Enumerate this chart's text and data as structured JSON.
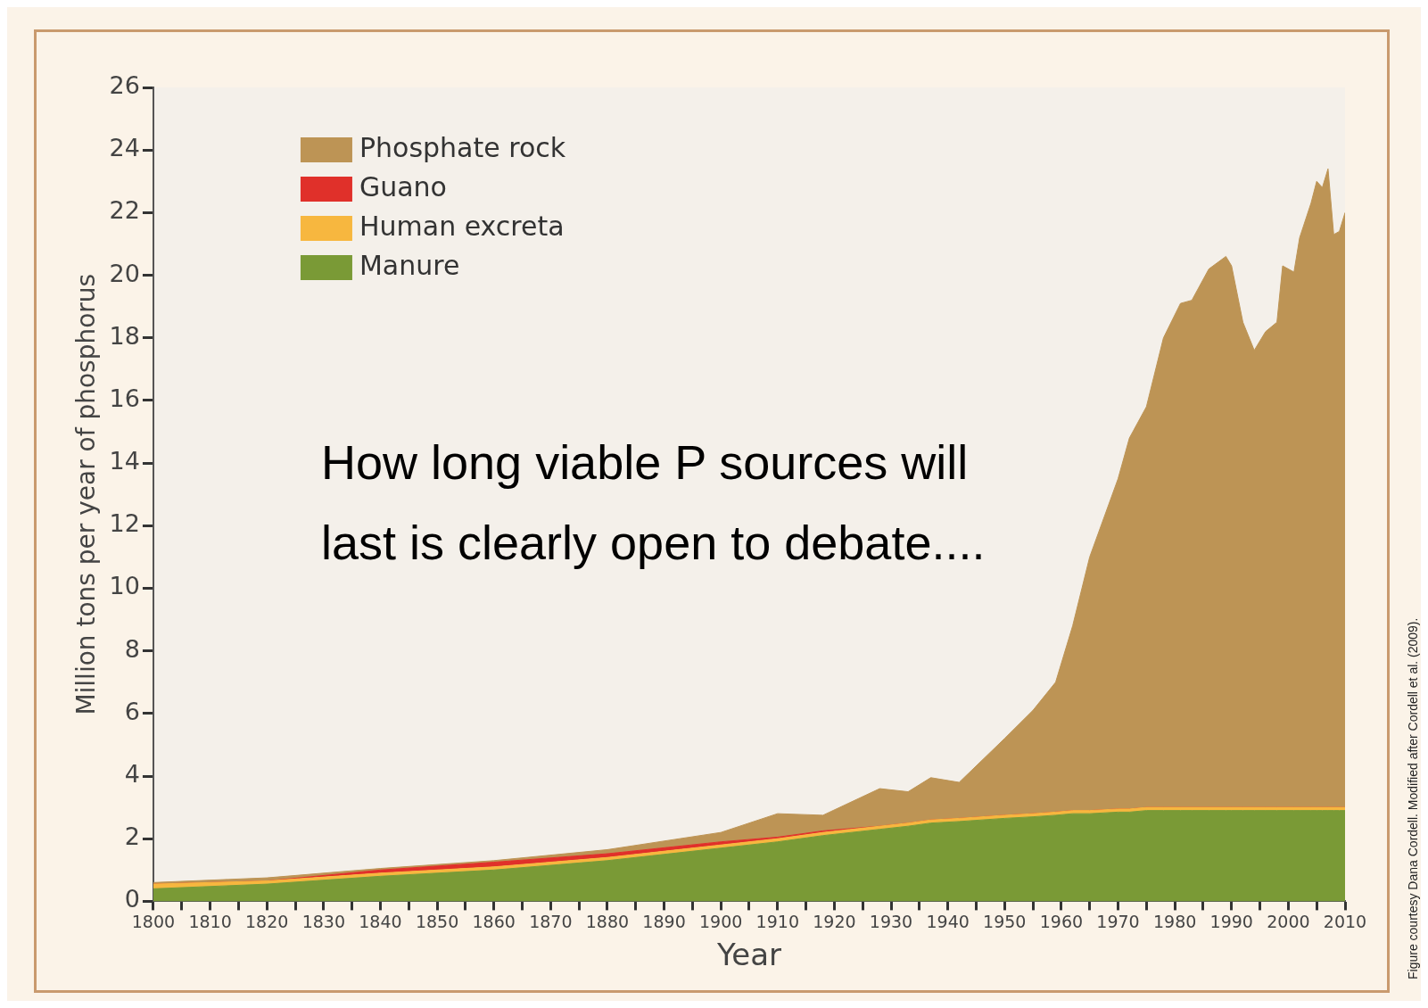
{
  "chart_data": {
    "type": "area",
    "xlabel": "Year",
    "ylabel": "Million tons per year of phosphorus",
    "stacked": true,
    "legend": "top left",
    "marker": "none",
    "x": [
      1800,
      1820,
      1840,
      1860,
      1880,
      1900,
      1910,
      1918,
      1928,
      1933,
      1937,
      1942,
      1950,
      1955,
      1959,
      1962,
      1965,
      1970,
      1972,
      1975,
      1978,
      1981,
      1983,
      1986,
      1989,
      1990,
      1992,
      1994,
      1996,
      1998,
      1999,
      2001,
      2002,
      2004,
      2005,
      2006,
      2007,
      2008,
      2009,
      2010
    ],
    "series": [
      {
        "name": "Manure",
        "color": "#7a9a36",
        "values": [
          0.4,
          0.55,
          0.8,
          1.0,
          1.3,
          1.7,
          1.9,
          2.1,
          2.3,
          2.4,
          2.5,
          2.55,
          2.65,
          2.7,
          2.75,
          2.8,
          2.8,
          2.85,
          2.85,
          2.9,
          2.9,
          2.9,
          2.9,
          2.9,
          2.9,
          2.9,
          2.9,
          2.9,
          2.9,
          2.9,
          2.9,
          2.9,
          2.9,
          2.9,
          2.9,
          2.9,
          2.9,
          2.9,
          2.9,
          2.9
        ]
      },
      {
        "name": "Human excreta",
        "color": "#f7b73f",
        "values": [
          0.15,
          0.1,
          0.1,
          0.1,
          0.1,
          0.1,
          0.1,
          0.1,
          0.1,
          0.1,
          0.1,
          0.1,
          0.1,
          0.1,
          0.1,
          0.1,
          0.1,
          0.1,
          0.1,
          0.1,
          0.1,
          0.1,
          0.1,
          0.1,
          0.1,
          0.1,
          0.1,
          0.1,
          0.1,
          0.1,
          0.1,
          0.1,
          0.1,
          0.1,
          0.1,
          0.1,
          0.1,
          0.1,
          0.1,
          0.1
        ]
      },
      {
        "name": "Guano",
        "color": "#e0302a",
        "values": [
          0,
          0,
          0.1,
          0.15,
          0.12,
          0.1,
          0.05,
          0.05,
          0,
          0,
          0,
          0,
          0,
          0,
          0,
          0,
          0,
          0,
          0,
          0,
          0,
          0,
          0,
          0,
          0,
          0,
          0,
          0,
          0,
          0,
          0,
          0,
          0,
          0,
          0,
          0,
          0,
          0,
          0,
          0
        ]
      },
      {
        "name": "Phosphate rock",
        "color": "#bd9455",
        "values": [
          0.05,
          0.1,
          0.05,
          0.05,
          0.13,
          0.3,
          0.75,
          0.5,
          1.2,
          1.0,
          1.35,
          1.15,
          2.45,
          3.3,
          4.15,
          5.9,
          8.1,
          10.55,
          11.85,
          12.8,
          15,
          16.1,
          16.2,
          17.2,
          17.6,
          17.3,
          15.5,
          14.6,
          15.2,
          15.5,
          17.3,
          17.1,
          18.2,
          19.3,
          20,
          19.8,
          20.4,
          18.3,
          18.4,
          19
        ]
      }
    ],
    "xlim": [
      1800,
      2010
    ],
    "xticks": [
      1800,
      {
        "value": 1805,
        "label": null
      },
      1810,
      {
        "value": 1815,
        "label": null
      },
      1820,
      {
        "value": 1825,
        "label": null
      },
      1830,
      {
        "value": 1835,
        "label": null
      },
      1840,
      {
        "value": 1845,
        "label": null
      },
      1850,
      {
        "value": 1855,
        "label": null
      },
      1860,
      {
        "value": 1865,
        "label": null
      },
      1870,
      {
        "value": 1875,
        "label": null
      },
      1880,
      {
        "value": 1885,
        "label": null
      },
      1890,
      {
        "value": 1895,
        "label": null
      },
      1900,
      {
        "value": 1905,
        "label": null
      },
      1910,
      {
        "value": 1915,
        "label": null
      },
      1920,
      {
        "value": 1925,
        "label": null
      },
      1930,
      {
        "value": 1935,
        "label": null
      },
      1940,
      {
        "value": 1945,
        "label": null
      },
      1950,
      {
        "value": 1955,
        "label": null
      },
      1960,
      {
        "value": 1965,
        "label": null
      },
      1970,
      {
        "value": 1975,
        "label": null
      },
      1980,
      {
        "value": 1985,
        "label": null
      },
      1990,
      {
        "value": 1995,
        "label": null
      },
      2000,
      {
        "value": 2005,
        "label": null
      },
      2010
    ],
    "ylim": [
      0,
      26
    ],
    "yticks": [
      0,
      2,
      4,
      6,
      8,
      10,
      12,
      14,
      16,
      18,
      20,
      22,
      24,
      26
    ],
    "annotations": [
      "How long viable P sources will last is clearly open to debate....",
      "Figure courtesy Dana Cordell. Modified after Cordell et al. (2009)."
    ]
  }
}
